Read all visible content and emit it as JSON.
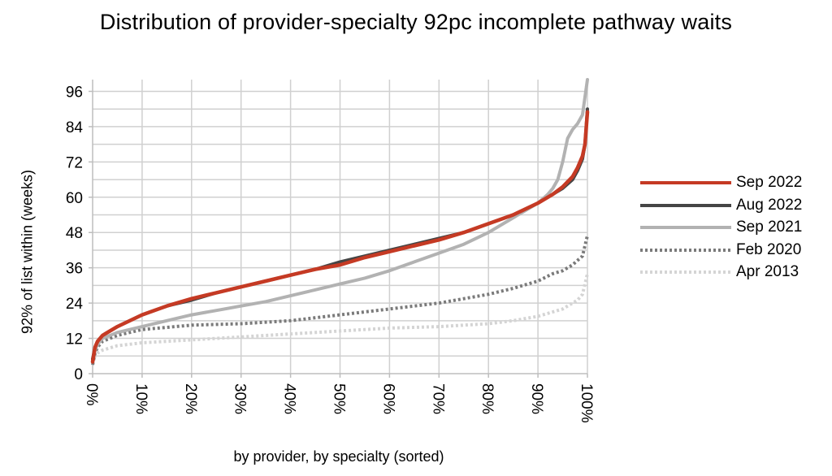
{
  "chart_data": {
    "type": "line",
    "title": "Distribution of provider-specialty 92pc incomplete pathway waits",
    "xlabel": "by provider, by specialty (sorted)",
    "ylabel": "92% of list within (weeks)",
    "xlim": [
      0,
      100
    ],
    "ylim": [
      0,
      100
    ],
    "x_ticks": [
      "0%",
      "10%",
      "20%",
      "30%",
      "40%",
      "50%",
      "60%",
      "70%",
      "80%",
      "90%",
      "100%"
    ],
    "y_ticks": [
      0,
      12,
      24,
      36,
      48,
      60,
      72,
      84,
      96
    ],
    "grid": true,
    "legend_position": "right",
    "series": [
      {
        "name": "Apr 2013",
        "color": "#d4d4d4",
        "style": "dotted",
        "x": [
          0,
          0.5,
          1,
          2,
          5,
          10,
          20,
          30,
          40,
          50,
          60,
          70,
          80,
          85,
          90,
          93,
          95,
          97,
          98,
          99,
          100
        ],
        "y": [
          4,
          6,
          7,
          8,
          9.5,
          10.5,
          11.5,
          12.5,
          13.5,
          14.5,
          15.5,
          16,
          17,
          18,
          19.5,
          21,
          22,
          24,
          25,
          27,
          34
        ]
      },
      {
        "name": "Feb 2020",
        "color": "#7a7a7a",
        "style": "dotted",
        "x": [
          0,
          0.5,
          1,
          2,
          5,
          10,
          20,
          30,
          40,
          50,
          60,
          70,
          75,
          80,
          85,
          90,
          93,
          95,
          97,
          98,
          99,
          100
        ],
        "y": [
          3,
          7,
          9,
          11,
          13,
          15,
          16.5,
          17,
          18,
          20,
          22,
          24,
          25.5,
          27,
          29,
          31.5,
          34,
          35,
          37,
          38.5,
          40,
          47
        ]
      },
      {
        "name": "Sep 2021",
        "color": "#b2b2b2",
        "style": "solid",
        "x": [
          0,
          0.5,
          1,
          2,
          5,
          10,
          15,
          20,
          25,
          30,
          35,
          40,
          45,
          50,
          55,
          60,
          65,
          70,
          75,
          80,
          85,
          90,
          92,
          93,
          94,
          95,
          96,
          97,
          98,
          99,
          100
        ],
        "y": [
          5,
          8,
          10,
          12,
          14,
          16,
          18,
          20,
          21.5,
          23,
          24.5,
          26.5,
          28.5,
          30.5,
          32.5,
          35,
          38,
          41,
          44,
          48,
          53,
          58,
          61,
          63,
          66,
          72,
          80,
          83,
          85,
          88,
          100
        ]
      },
      {
        "name": "Aug 2022",
        "color": "#454545",
        "style": "solid",
        "x": [
          0,
          0.5,
          1,
          2,
          5,
          10,
          15,
          20,
          25,
          30,
          35,
          40,
          45,
          50,
          55,
          60,
          65,
          70,
          75,
          80,
          85,
          90,
          93,
          95,
          97,
          98,
          99,
          99.5,
          100
        ],
        "y": [
          5,
          9,
          11,
          13,
          16,
          20,
          23,
          25,
          27.5,
          29.5,
          31.5,
          33.5,
          35.5,
          38,
          40,
          42,
          44,
          46,
          48,
          51,
          54,
          58,
          61,
          63,
          66,
          69,
          73,
          78,
          90
        ]
      },
      {
        "name": "Sep 2022",
        "color": "#c53a24",
        "style": "solid",
        "x": [
          0,
          0.5,
          1,
          2,
          5,
          10,
          15,
          20,
          25,
          30,
          35,
          40,
          45,
          50,
          55,
          60,
          65,
          70,
          75,
          80,
          85,
          90,
          93,
          95,
          97,
          98,
          99,
          99.5,
          100
        ],
        "y": [
          4,
          9,
          11,
          13,
          16,
          20,
          23,
          25.5,
          27.5,
          29.5,
          31.5,
          33.5,
          35.5,
          37,
          39.5,
          41.5,
          43.5,
          45.5,
          48,
          51,
          54,
          58,
          61,
          63.5,
          67,
          70,
          74,
          78,
          89
        ]
      }
    ]
  },
  "legend": [
    {
      "label": "Sep 2022",
      "color": "#c53a24",
      "style": "solid"
    },
    {
      "label": "Aug 2022",
      "color": "#454545",
      "style": "solid"
    },
    {
      "label": "Sep 2021",
      "color": "#b2b2b2",
      "style": "solid"
    },
    {
      "label": "Feb 2020",
      "color": "#7a7a7a",
      "style": "dotted"
    },
    {
      "label": "Apr 2013",
      "color": "#d4d4d4",
      "style": "dotted"
    }
  ]
}
